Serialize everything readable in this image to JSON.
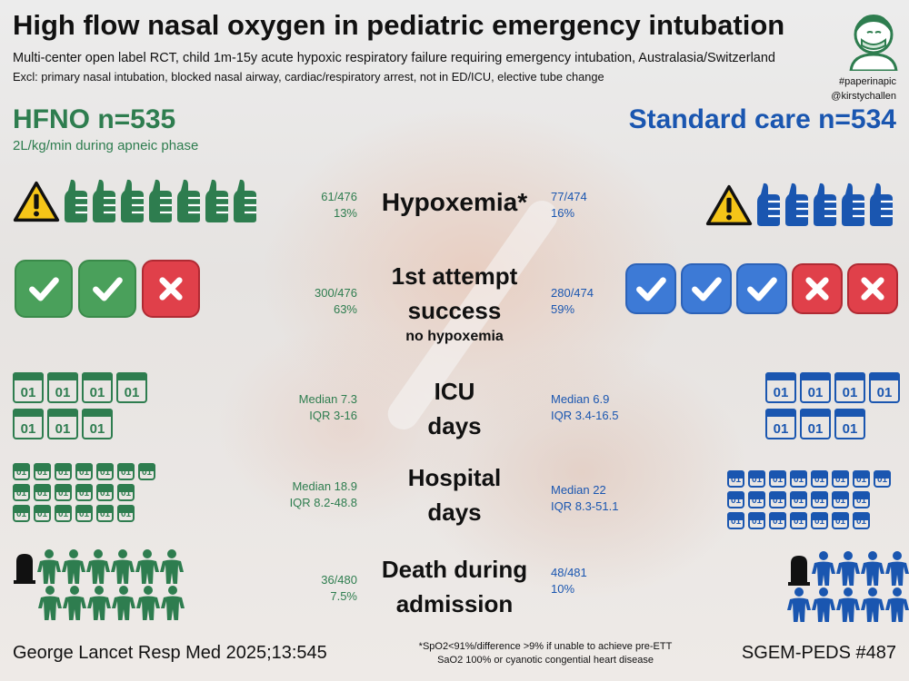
{
  "title": "High flow nasal oxygen in pediatric emergency intubation",
  "subtitle": "Multi-center open label RCT, child 1m-15y acute hypoxic respiratory failure requiring emergency intubation, Australasia/Switzerland",
  "exclusions": "Excl: primary nasal intubation, blocked nasal airway, cardiac/respiratory arrest, not in ED/ICU, elective tube change",
  "hashtag": "#paperinapic",
  "handle": "@kirstychallen",
  "hfno": {
    "heading": "HFNO n=535",
    "detail": "2L/kg/min during apneic phase",
    "color": "#2e7d4f"
  },
  "standard": {
    "heading": "Standard care n=534",
    "color": "#1a56b0"
  },
  "outcomes": {
    "hypoxemia": {
      "label": "Hypoxemia*",
      "hfno_stat1": "61/476",
      "hfno_stat2": "13%",
      "std_stat1": "77/474",
      "std_stat2": "16%"
    },
    "first_attempt": {
      "label_line1": "1st attempt",
      "label_line2": "success",
      "label_line3": "no hypoxemia",
      "hfno_stat1": "300/476",
      "hfno_stat2": "63%",
      "std_stat1": "280/474",
      "std_stat2": "59%"
    },
    "icu": {
      "label_line1": "ICU",
      "label_line2": "days",
      "hfno_stat1": "Median 7.3",
      "hfno_stat2": "IQR 3-16",
      "std_stat1": "Median 6.9",
      "std_stat2": "IQR 3.4-16.5"
    },
    "hospital": {
      "label_line1": "Hospital",
      "label_line2": "days",
      "hfno_stat1": "Median 18.9",
      "hfno_stat2": "IQR 8.2-48.8",
      "std_stat1": "Median 22",
      "std_stat2": "IQR 8.3-51.1"
    },
    "death": {
      "label_line1": "Death during",
      "label_line2": "admission",
      "hfno_stat1": "36/480",
      "hfno_stat2": "7.5%",
      "std_stat1": "48/481",
      "std_stat2": "10%"
    }
  },
  "calendar_label": "01",
  "citation": "George Lancet Resp Med 2025;13:545",
  "series": "SGEM-PEDS #487",
  "footnote_line1": "*SpO2<91%/difference >9% if unable to achieve pre-ETT",
  "footnote_line2": "SaO2 100% or cyanotic congential heart disease",
  "icons": [
    "warning-icon",
    "thumbs-up-icon",
    "check-icon",
    "cross-icon",
    "calendar-icon",
    "tombstone-icon",
    "person-icon",
    "doctor-avatar-icon"
  ]
}
